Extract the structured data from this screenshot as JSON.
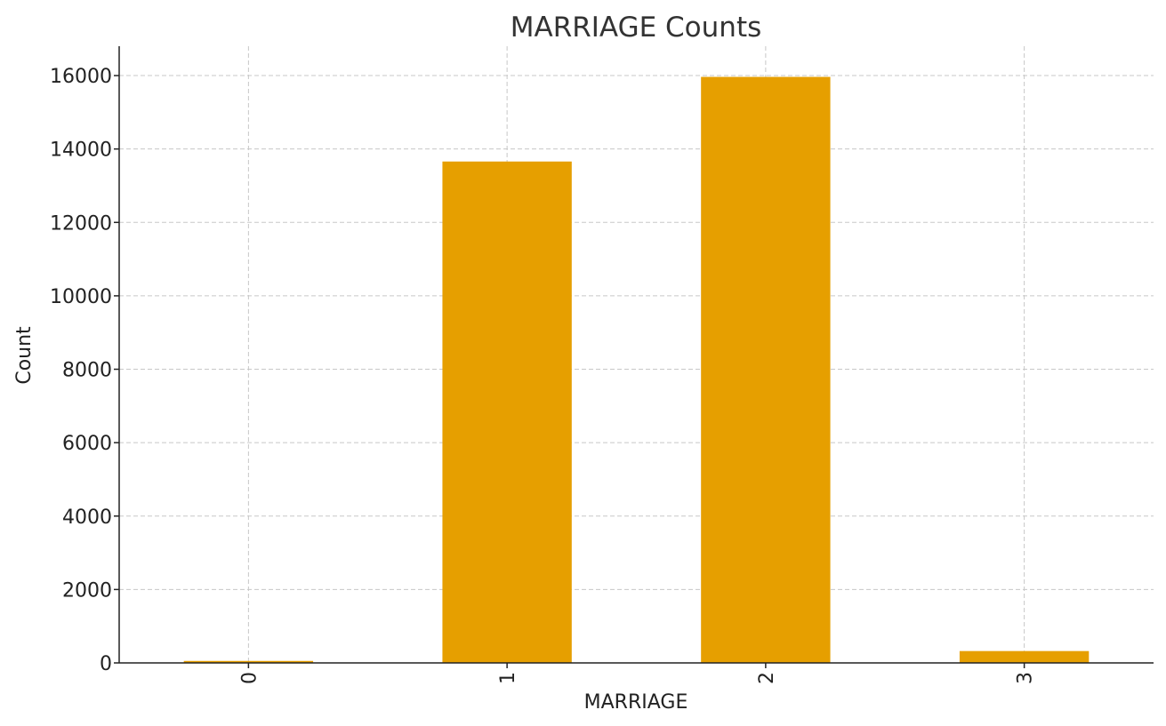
{
  "chart_data": {
    "type": "bar",
    "title": "MARRIAGE Counts",
    "xlabel": "MARRIAGE",
    "ylabel": "Count",
    "categories": [
      "0",
      "1",
      "2",
      "3"
    ],
    "values": [
      54,
      13659,
      15964,
      323
    ],
    "ylim": [
      0,
      16800
    ],
    "yticks": [
      0,
      2000,
      4000,
      6000,
      8000,
      10000,
      12000,
      14000,
      16000
    ],
    "ytick_labels": [
      "0",
      "2000",
      "4000",
      "6000",
      "8000",
      "10000",
      "12000",
      "14000",
      "16000"
    ],
    "grid": true,
    "bar_color": "#E69F00",
    "xtick_rotation": "vertical"
  }
}
